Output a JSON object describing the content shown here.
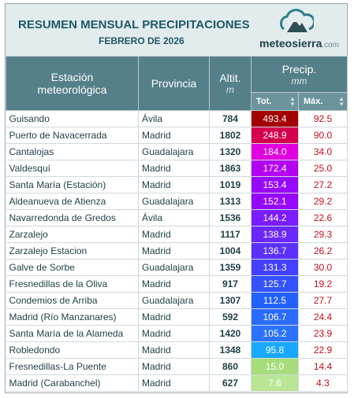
{
  "header": {
    "title": "RESUMEN MENSUAL PRECIPITACIONES",
    "subtitle": "FEBRERO DE 2026",
    "logo": {
      "name": "meteosierra",
      "suffix": ".com"
    }
  },
  "table": {
    "columns": {
      "station": "Estación meteorológica",
      "province": "Provincia",
      "altitude": "Altit.",
      "altitude_unit": "m",
      "precip": "Precip.",
      "precip_unit": "mm",
      "total": "Tot.",
      "max": "Máx."
    },
    "rows": [
      [
        "Guisando",
        "Ávila",
        "784",
        "493.4",
        "92.5"
      ],
      [
        "Puerto de Navacerrada",
        "Madrid",
        "1802",
        "248.9",
        "90.0"
      ],
      [
        "Cantalojas",
        "Guadalajara",
        "1320",
        "184.0",
        "34.0"
      ],
      [
        "Valdesquí",
        "Madrid",
        "1863",
        "172.4",
        "25.0"
      ],
      [
        "Santa María (Estación)",
        "Madrid",
        "1019",
        "153.4",
        "27.2"
      ],
      [
        "Aldeanueva de Atienza",
        "Guadalajara",
        "1313",
        "152.1",
        "29.2"
      ],
      [
        "Navarredonda de Gredos",
        "Ávila",
        "1536",
        "144.2",
        "22.6"
      ],
      [
        "Zarzalejo",
        "Madrid",
        "1117",
        "138.9",
        "29.3"
      ],
      [
        "Zarzalejo Estacion",
        "Madrid",
        "1004",
        "136.7",
        "26.2"
      ],
      [
        "Galve de Sorbe",
        "Guadalajara",
        "1359",
        "131.3",
        "30.0"
      ],
      [
        "Fresnedillas de la Oliva",
        "Madrid",
        "917",
        "125.7",
        "19.2"
      ],
      [
        "Condemios de Arriba",
        "Guadalajara",
        "1307",
        "112.5",
        "27.7"
      ],
      [
        "Madrid (Río Manzanares)",
        "Madrid",
        "592",
        "106.7",
        "24.4"
      ],
      [
        "Santa María de la Alameda",
        "Madrid",
        "1420",
        "105.2",
        "23.9"
      ],
      [
        "Robledondo",
        "Madrid",
        "1348",
        "95.8",
        "22.9"
      ],
      [
        "Fresnedillas-La Puente",
        "Madrid",
        "860",
        "15.0",
        "14.4"
      ],
      [
        "Madrid (Carabanchel)",
        "Madrid",
        "627",
        "7.6",
        "4.3"
      ]
    ],
    "total_colors": [
      "#a30000",
      "#d5004e",
      "#e000e0",
      "#b300f2",
      "#9808ff",
      "#9608ff",
      "#7a1cff",
      "#6a28ff",
      "#5c30ff",
      "#4440ff",
      "#3452ff",
      "#2262ff",
      "#2a6cff",
      "#2a72ff",
      "#18a8ff",
      "#a6dc7c",
      "#b8e694"
    ]
  }
}
